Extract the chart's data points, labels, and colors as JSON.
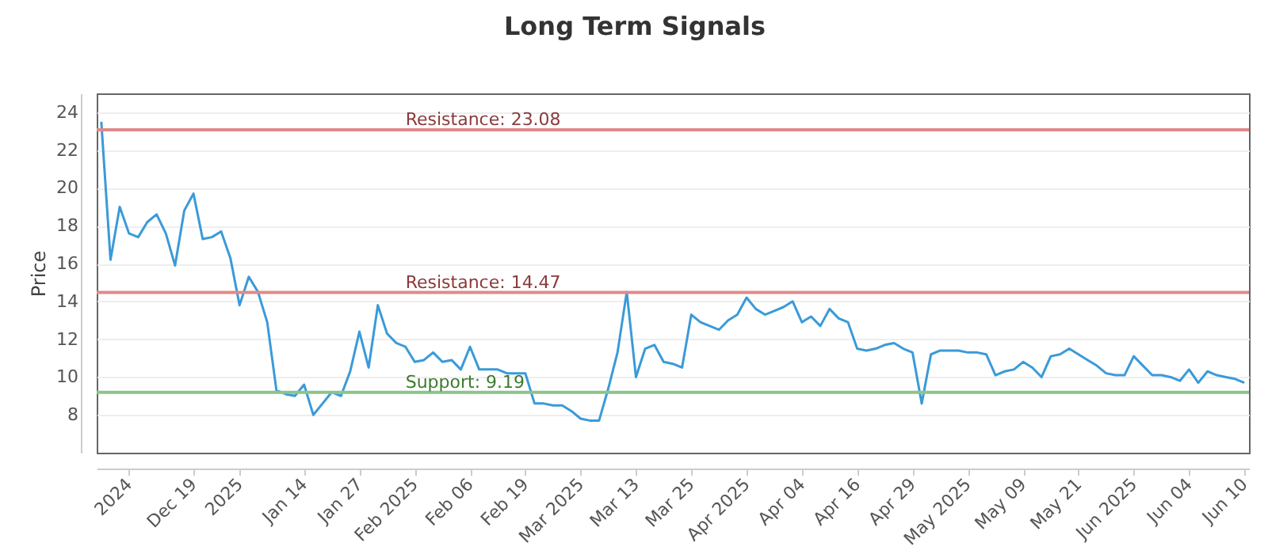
{
  "chart_data": {
    "type": "line",
    "title": "Long Term Signals",
    "ylabel": "Price",
    "categories": [
      null,
      null,
      null,
      "2024",
      null,
      null,
      null,
      null,
      null,
      null,
      "Dec 19",
      null,
      null,
      null,
      null,
      "2025",
      null,
      null,
      null,
      null,
      null,
      null,
      "Jan 14",
      null,
      null,
      null,
      null,
      null,
      "Jan 27",
      null,
      null,
      null,
      null,
      null,
      "Feb 2025",
      null,
      null,
      null,
      null,
      null,
      "Feb 06",
      null,
      null,
      null,
      null,
      null,
      "Feb 19",
      null,
      null,
      null,
      null,
      null,
      "Mar 2025",
      null,
      null,
      null,
      null,
      null,
      "Mar 13",
      null,
      null,
      null,
      null,
      null,
      "Mar 25",
      null,
      null,
      null,
      null,
      null,
      "Apr 2025",
      null,
      null,
      null,
      null,
      null,
      "Apr 04",
      null,
      null,
      null,
      null,
      null,
      "Apr 16",
      null,
      null,
      null,
      null,
      null,
      "Apr 29",
      null,
      null,
      null,
      null,
      null,
      "May 2025",
      null,
      null,
      null,
      null,
      null,
      "May 09",
      null,
      null,
      null,
      null,
      null,
      "May 21",
      null,
      null,
      null,
      null,
      null,
      "Jun 2025",
      null,
      null,
      null,
      null,
      null,
      "Jun 04",
      null,
      null,
      null,
      null,
      null,
      "Jun 10"
    ],
    "series": [
      {
        "color": "#3a9ad9",
        "values": [
          23.5,
          16.2,
          19.0,
          17.6,
          17.4,
          18.2,
          18.6,
          17.6,
          15.9,
          18.8,
          19.7,
          17.3,
          17.4,
          17.7,
          16.3,
          13.8,
          15.3,
          14.5,
          12.9,
          9.3,
          9.1,
          9.0,
          9.6,
          8.0,
          8.6,
          9.2,
          9.0,
          10.3,
          12.4,
          10.5,
          13.8,
          12.3,
          11.8,
          11.6,
          10.8,
          10.9,
          11.3,
          10.8,
          10.9,
          10.4,
          11.6,
          10.4,
          10.4,
          10.4,
          10.2,
          10.2,
          10.2,
          8.6,
          8.6,
          8.5,
          8.5,
          8.2,
          7.8,
          7.7,
          7.7,
          9.4,
          11.3,
          14.5,
          10.0,
          11.5,
          11.7,
          10.8,
          10.7,
          10.5,
          13.3,
          12.9,
          12.7,
          12.5,
          13.0,
          13.3,
          14.2,
          13.6,
          13.3,
          13.5,
          13.7,
          14.0,
          12.9,
          13.2,
          12.7,
          13.6,
          13.1,
          12.9,
          11.5,
          11.4,
          11.5,
          11.7,
          11.8,
          11.5,
          11.3,
          8.6,
          11.2,
          11.4,
          11.4,
          11.4,
          11.3,
          11.3,
          11.2,
          10.1,
          10.3,
          10.4,
          10.8,
          10.5,
          10.0,
          11.1,
          11.2,
          11.5,
          11.2,
          10.9,
          10.6,
          10.2,
          10.1,
          10.1,
          11.1,
          10.6,
          10.1,
          10.1,
          10.0,
          9.8,
          10.4,
          9.7,
          10.3,
          10.1,
          10.0,
          9.9,
          9.7
        ]
      }
    ],
    "ylim": [
      6,
      25
    ],
    "yticks": [
      8,
      10,
      12,
      14,
      16,
      18,
      20,
      22,
      24
    ],
    "grid": "y",
    "ref_lines": [
      {
        "axis": "y",
        "value": 23.08,
        "label": "Resistance: 23.08",
        "color": "#e08a8a"
      },
      {
        "axis": "y",
        "value": 14.47,
        "label": "Resistance: 14.47",
        "color": "#e08a8a"
      },
      {
        "axis": "y",
        "value": 9.19,
        "label": "Support: 9.19",
        "color": "#8cc48c"
      }
    ]
  }
}
